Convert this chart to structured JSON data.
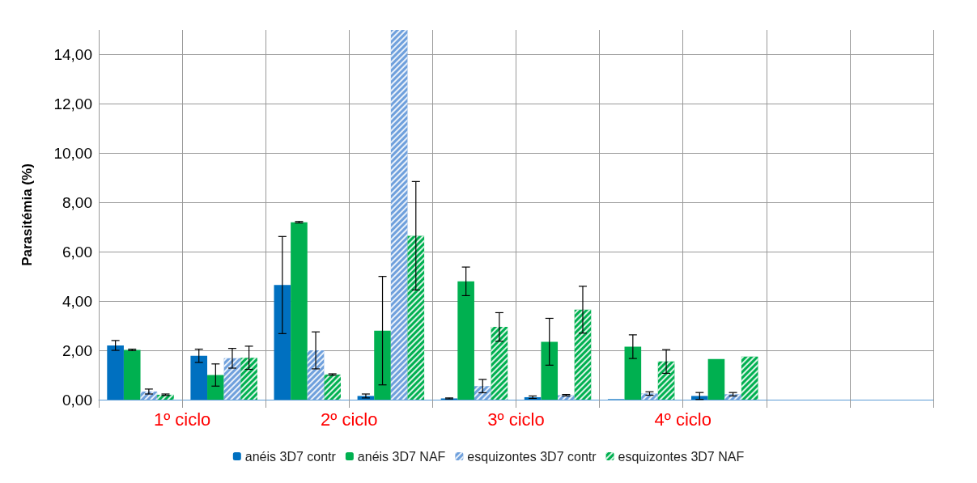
{
  "chart_data": {
    "type": "bar",
    "ylabel": "Parasitémia (%)",
    "categories": [
      null,
      null,
      null,
      null,
      null,
      null,
      null,
      null,
      null,
      null
    ],
    "series": [
      {
        "name": "anéis 3D7 contr",
        "color": "#0070c0",
        "values": [
          2.2,
          1.78,
          4.65,
          0.15,
          0.05,
          0.1,
          0.02,
          0.15,
          null,
          null
        ],
        "errors": [
          0.2,
          0.27,
          1.97,
          0.08,
          0.02,
          0.05,
          null,
          0.14,
          null,
          null
        ]
      },
      {
        "name": "anéis 3D7 NAF",
        "color": "#00b050",
        "values": [
          2.02,
          1.0,
          7.2,
          2.8,
          4.8,
          2.35,
          2.15,
          1.65,
          null,
          null
        ],
        "errors": [
          0.03,
          0.45,
          0.03,
          2.2,
          0.58,
          0.95,
          0.48,
          null,
          null,
          null
        ]
      },
      {
        "name": "esquizontes 3D7 contr",
        "color": "#6fa0dc",
        "values": [
          0.33,
          1.68,
          2.0,
          15,
          0.55,
          0.18,
          0.25,
          0.22,
          null,
          null
        ],
        "errors": [
          0.1,
          0.4,
          0.75,
          null,
          0.27,
          0.03,
          0.07,
          0.07,
          null,
          null
        ]
      },
      {
        "name": "esquizontes 3D7 NAF",
        "color": "#00b050",
        "values": [
          0.2,
          1.7,
          1.02,
          6.65,
          2.95,
          3.65,
          1.55,
          1.75,
          null,
          null
        ],
        "errors": [
          0.03,
          0.47,
          0.03,
          2.2,
          0.58,
          0.95,
          0.48,
          null,
          null,
          null
        ]
      }
    ],
    "ylim": [
      0,
      15
    ],
    "yticks": [
      {
        "value": 0,
        "label": "0,00"
      },
      {
        "value": 2,
        "label": "2,00"
      },
      {
        "value": 4,
        "label": "4,00"
      },
      {
        "value": 6,
        "label": "6,00"
      },
      {
        "value": 8,
        "label": "8,00"
      },
      {
        "value": 10,
        "label": "10,00"
      },
      {
        "value": 12,
        "label": "12,00"
      },
      {
        "value": 14,
        "label": "14,00"
      }
    ],
    "annotations": [
      "1º ciclo",
      "2º ciclo",
      "3º ciclo",
      "4º ciclo"
    ],
    "grid": true,
    "legend": "bottom"
  }
}
